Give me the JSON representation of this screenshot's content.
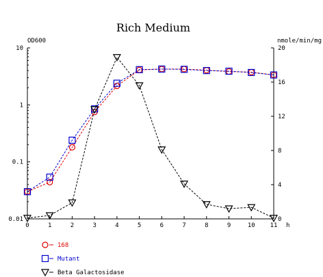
{
  "chart_data": {
    "type": "line",
    "title": "Rich Medium",
    "y_left_label": "OD600",
    "y_right_label": "nmole/min/mg",
    "x_unit": "h",
    "x_ticks": [
      "0",
      "1",
      "2",
      "3",
      "4",
      "5",
      "6",
      "7",
      "8",
      "9",
      "10",
      "11"
    ],
    "xlim": [
      0,
      11
    ],
    "y_left_scale": "log",
    "y_left_lim": [
      0.01,
      10
    ],
    "y_left_ticks": [
      {
        "value": 10,
        "label": "10"
      },
      {
        "value": 1,
        "label": "1"
      },
      {
        "value": 0.1,
        "label": "0.1"
      },
      {
        "value": 0.01,
        "label": "0.01"
      }
    ],
    "y_right_lim": [
      0,
      20
    ],
    "y_right_ticks": [
      "0",
      "4",
      "8",
      "12",
      "16",
      "20"
    ],
    "grid": false,
    "legend_position": "bottom-left",
    "series": [
      {
        "name": "168",
        "axis": "left",
        "color": "#dd0000",
        "marker": "circle",
        "x": [
          0,
          1,
          2,
          3,
          4,
          5,
          6,
          7,
          8,
          9,
          10,
          11
        ],
        "y": [
          0.03,
          0.044,
          0.18,
          0.75,
          2.15,
          4.1,
          4.25,
          4.25,
          4.05,
          3.85,
          3.75,
          3.35
        ]
      },
      {
        "name": "Mutant",
        "axis": "left",
        "color": "#0000cc",
        "marker": "square",
        "x": [
          0,
          1,
          2,
          3,
          4,
          5,
          6,
          7,
          8,
          9,
          10,
          11
        ],
        "y": [
          0.03,
          0.054,
          0.24,
          0.85,
          2.4,
          4.15,
          4.25,
          4.2,
          4.0,
          3.9,
          3.7,
          3.35
        ]
      },
      {
        "name": "Beta Galactosidase",
        "axis": "right",
        "color": "#000000",
        "marker": "triangle-down",
        "x": [
          0,
          1,
          2,
          3,
          4,
          5,
          6,
          7,
          8,
          9,
          10,
          11
        ],
        "y": [
          0.1,
          0.4,
          1.9,
          12.8,
          18.9,
          15.6,
          8.1,
          4.1,
          1.7,
          1.2,
          1.35,
          0.1
        ]
      }
    ]
  }
}
